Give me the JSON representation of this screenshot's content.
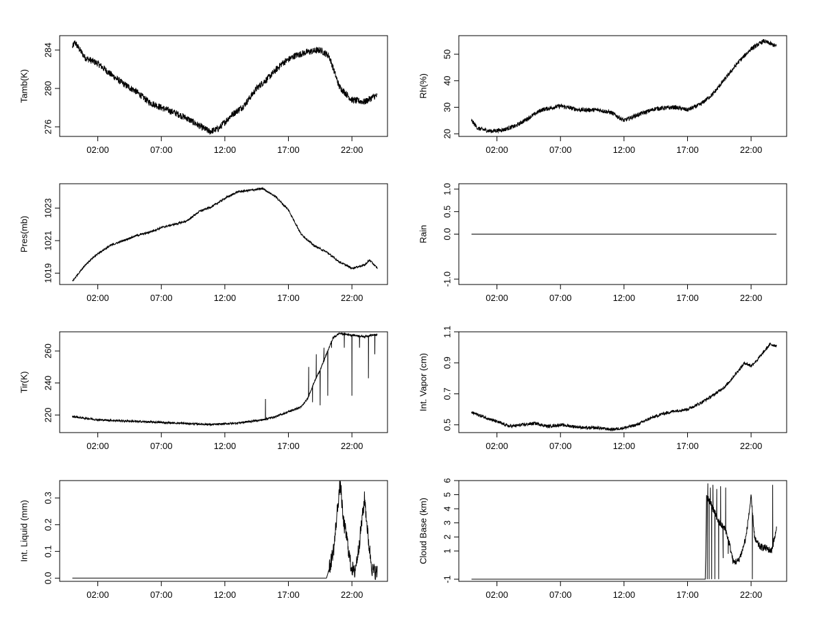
{
  "chart_data": [
    {
      "type": "line",
      "ylabel": "Tamb(K)",
      "xlim": [
        -1.0,
        24.8
      ],
      "ylim": [
        275,
        285.5
      ],
      "yticks": [
        276,
        280,
        284
      ],
      "x_ticks": [
        {
          "v": 2,
          "label": "02:00"
        },
        {
          "v": 7,
          "label": "07:00"
        },
        {
          "v": 12,
          "label": "12:00"
        },
        {
          "v": 17,
          "label": "17:00"
        },
        {
          "v": 22,
          "label": "22:00"
        }
      ],
      "x_range": [
        0,
        24
      ],
      "anchors": [
        [
          0,
          284.3
        ],
        [
          0.2,
          284.8
        ],
        [
          1.0,
          283.2
        ],
        [
          2.0,
          282.6
        ],
        [
          3.0,
          281.5
        ],
        [
          4.0,
          280.5
        ],
        [
          5.0,
          279.7
        ],
        [
          6.0,
          278.6
        ],
        [
          7.0,
          278.0
        ],
        [
          8.0,
          277.5
        ],
        [
          9.0,
          276.9
        ],
        [
          10.0,
          276.1
        ],
        [
          10.8,
          275.5
        ],
        [
          11.5,
          275.8
        ],
        [
          12.5,
          277.2
        ],
        [
          13.5,
          278.2
        ],
        [
          14.5,
          280.0
        ],
        [
          15.5,
          281.2
        ],
        [
          16.5,
          282.6
        ],
        [
          17.5,
          283.4
        ],
        [
          18.5,
          283.8
        ],
        [
          19.5,
          284.0
        ],
        [
          20.2,
          283.4
        ],
        [
          21.0,
          280.2
        ],
        [
          22.0,
          278.8
        ],
        [
          23.0,
          278.6
        ],
        [
          23.8,
          279.2
        ]
      ],
      "noise": 0.35
    },
    {
      "type": "line",
      "ylabel": "Rh(%)",
      "xlim": [
        -1.0,
        24.8
      ],
      "ylim": [
        19,
        57
      ],
      "yticks": [
        20,
        30,
        40,
        50
      ],
      "x_ticks": [
        {
          "v": 2,
          "label": "02:00"
        },
        {
          "v": 7,
          "label": "07:00"
        },
        {
          "v": 12,
          "label": "12:00"
        },
        {
          "v": 17,
          "label": "17:00"
        },
        {
          "v": 22,
          "label": "22:00"
        }
      ],
      "x_range": [
        0,
        24
      ],
      "anchors": [
        [
          0,
          25
        ],
        [
          0.5,
          22
        ],
        [
          1.5,
          21
        ],
        [
          2.5,
          21.5
        ],
        [
          3.5,
          23
        ],
        [
          4.5,
          26
        ],
        [
          5.5,
          29
        ],
        [
          7.0,
          30.5
        ],
        [
          8.5,
          29
        ],
        [
          10,
          29
        ],
        [
          11,
          28
        ],
        [
          12,
          25
        ],
        [
          13,
          27
        ],
        [
          14.5,
          29.5
        ],
        [
          16,
          30
        ],
        [
          17,
          29
        ],
        [
          18,
          31
        ],
        [
          19,
          35
        ],
        [
          20,
          41
        ],
        [
          21,
          47
        ],
        [
          22,
          52
        ],
        [
          23,
          55
        ],
        [
          24,
          53
        ]
      ],
      "noise": 0.8
    },
    {
      "type": "line",
      "ylabel": "Pres(mb)",
      "xlim": [
        -1.0,
        24.8
      ],
      "ylim": [
        1018.3,
        1024.5
      ],
      "yticks": [
        1019,
        1021,
        1023
      ],
      "x_ticks": [
        {
          "v": 2,
          "label": "02:00"
        },
        {
          "v": 7,
          "label": "07:00"
        },
        {
          "v": 12,
          "label": "12:00"
        },
        {
          "v": 17,
          "label": "17:00"
        },
        {
          "v": 22,
          "label": "22:00"
        }
      ],
      "x_range": [
        0,
        24
      ],
      "anchors": [
        [
          0,
          1018.5
        ],
        [
          1,
          1019.5
        ],
        [
          2,
          1020.2
        ],
        [
          3,
          1020.7
        ],
        [
          4,
          1021.0
        ],
        [
          5,
          1021.3
        ],
        [
          6,
          1021.5
        ],
        [
          7,
          1021.8
        ],
        [
          8,
          1022.0
        ],
        [
          9,
          1022.2
        ],
        [
          10,
          1022.8
        ],
        [
          11,
          1023.1
        ],
        [
          12,
          1023.6
        ],
        [
          13,
          1024.0
        ],
        [
          14,
          1024.1
        ],
        [
          15,
          1024.2
        ],
        [
          16,
          1023.7
        ],
        [
          17,
          1022.9
        ],
        [
          18,
          1021.4
        ],
        [
          19,
          1020.7
        ],
        [
          20,
          1020.3
        ],
        [
          21,
          1019.7
        ],
        [
          22,
          1019.3
        ],
        [
          23,
          1019.5
        ],
        [
          23.4,
          1019.8
        ],
        [
          24,
          1019.3
        ]
      ],
      "noise": 0.06
    },
    {
      "type": "line",
      "ylabel": "Rain",
      "xlim": [
        -1.0,
        24.8
      ],
      "ylim": [
        -1.12,
        1.12
      ],
      "yticks": [
        -1.0,
        0.0,
        0.5,
        1.0
      ],
      "ytick_labels": [
        "-1.0",
        "0.0",
        "0.5",
        "1.0"
      ],
      "x_ticks": [
        {
          "v": 2,
          "label": "02:00"
        },
        {
          "v": 7,
          "label": "07:00"
        },
        {
          "v": 12,
          "label": "12:00"
        },
        {
          "v": 17,
          "label": "17:00"
        },
        {
          "v": 22,
          "label": "22:00"
        }
      ],
      "x_range": [
        0,
        24
      ],
      "anchors": [
        [
          0,
          0
        ],
        [
          24,
          0
        ]
      ],
      "noise": 0
    },
    {
      "type": "line",
      "ylabel": "Tir(K)",
      "xlim": [
        -1.0,
        24.8
      ],
      "ylim": [
        209,
        272
      ],
      "yticks": [
        220,
        240,
        260
      ],
      "x_ticks": [
        {
          "v": 2,
          "label": "02:00"
        },
        {
          "v": 7,
          "label": "07:00"
        },
        {
          "v": 12,
          "label": "12:00"
        },
        {
          "v": 17,
          "label": "17:00"
        },
        {
          "v": 22,
          "label": "22:00"
        }
      ],
      "x_range": [
        0,
        24
      ],
      "anchors": [
        [
          0,
          219
        ],
        [
          2,
          217
        ],
        [
          5,
          216
        ],
        [
          8,
          215
        ],
        [
          11,
          214
        ],
        [
          13,
          215
        ],
        [
          15,
          217
        ],
        [
          16,
          219
        ],
        [
          17,
          222
        ],
        [
          18,
          225
        ],
        [
          18.5,
          230
        ],
        [
          19,
          240
        ],
        [
          19.6,
          250
        ],
        [
          20,
          258
        ],
        [
          20.5,
          268
        ],
        [
          21,
          271
        ],
        [
          22,
          270
        ],
        [
          23,
          269
        ],
        [
          23.5,
          270
        ],
        [
          24,
          270
        ]
      ],
      "spikes": [
        [
          15.2,
          230
        ],
        [
          18.6,
          250
        ],
        [
          18.9,
          228
        ],
        [
          19.2,
          258
        ],
        [
          19.5,
          226
        ],
        [
          19.8,
          262
        ],
        [
          20.1,
          232
        ],
        [
          20.4,
          262
        ],
        [
          21.4,
          262
        ],
        [
          22.0,
          232
        ],
        [
          22.6,
          262
        ],
        [
          23.3,
          243
        ],
        [
          23.8,
          258
        ]
      ],
      "noise": 0.6
    },
    {
      "type": "line",
      "ylabel": "Int. Vapor (cm)",
      "xlim": [
        -1.0,
        24.8
      ],
      "ylim": [
        0.45,
        1.1
      ],
      "yticks": [
        0.5,
        0.7,
        0.9,
        1.1
      ],
      "x_ticks": [
        {
          "v": 2,
          "label": "02:00"
        },
        {
          "v": 7,
          "label": "07:00"
        },
        {
          "v": 12,
          "label": "12:00"
        },
        {
          "v": 17,
          "label": "17:00"
        },
        {
          "v": 22,
          "label": "22:00"
        }
      ],
      "x_range": [
        0,
        24
      ],
      "anchors": [
        [
          0,
          0.58
        ],
        [
          1,
          0.55
        ],
        [
          2,
          0.52
        ],
        [
          3,
          0.49
        ],
        [
          4,
          0.5
        ],
        [
          5,
          0.51
        ],
        [
          6,
          0.49
        ],
        [
          7,
          0.5
        ],
        [
          8,
          0.49
        ],
        [
          9,
          0.48
        ],
        [
          10,
          0.48
        ],
        [
          11,
          0.47
        ],
        [
          12,
          0.48
        ],
        [
          13,
          0.5
        ],
        [
          14,
          0.54
        ],
        [
          15,
          0.57
        ],
        [
          16,
          0.59
        ],
        [
          17,
          0.6
        ],
        [
          18,
          0.64
        ],
        [
          19,
          0.69
        ],
        [
          20,
          0.75
        ],
        [
          21,
          0.85
        ],
        [
          21.5,
          0.9
        ],
        [
          22,
          0.88
        ],
        [
          22.5,
          0.92
        ],
        [
          23,
          0.97
        ],
        [
          23.5,
          1.02
        ],
        [
          24,
          1.01
        ]
      ],
      "noise": 0.01
    },
    {
      "type": "line",
      "ylabel": "Int. Liquid (mm)",
      "xlim": [
        -1.0,
        24.8
      ],
      "ylim": [
        -0.012,
        0.365
      ],
      "yticks": [
        0.0,
        0.1,
        0.2,
        0.3
      ],
      "ytick_labels": [
        "0.0",
        "0.1",
        "0.2",
        "0.3"
      ],
      "x_ticks": [
        {
          "v": 2,
          "label": "02:00"
        },
        {
          "v": 7,
          "label": "07:00"
        },
        {
          "v": 12,
          "label": "12:00"
        },
        {
          "v": 17,
          "label": "17:00"
        },
        {
          "v": 22,
          "label": "22:00"
        }
      ],
      "x_range": [
        0,
        24
      ],
      "anchors": [
        [
          0,
          0
        ],
        [
          20,
          0
        ],
        [
          20.3,
          0.05
        ],
        [
          20.6,
          0.12
        ],
        [
          20.9,
          0.28
        ],
        [
          21.1,
          0.36
        ],
        [
          21.3,
          0.22
        ],
        [
          21.6,
          0.15
        ],
        [
          21.9,
          0.05
        ],
        [
          22.2,
          0.02
        ],
        [
          22.5,
          0.1
        ],
        [
          22.8,
          0.22
        ],
        [
          23.0,
          0.3
        ],
        [
          23.3,
          0.14
        ],
        [
          23.6,
          0.03
        ],
        [
          24,
          0.02
        ]
      ],
      "noise": 0.03,
      "noise_after": 20.2
    },
    {
      "type": "line",
      "ylabel": "Cloud Base (km)",
      "xlim": [
        -1.0,
        24.8
      ],
      "ylim": [
        -1.15,
        6.0
      ],
      "yticks": [
        -1,
        1,
        2,
        3,
        4,
        5,
        6
      ],
      "x_ticks": [
        {
          "v": 2,
          "label": "02:00"
        },
        {
          "v": 7,
          "label": "07:00"
        },
        {
          "v": 12,
          "label": "12:00"
        },
        {
          "v": 17,
          "label": "17:00"
        },
        {
          "v": 22,
          "label": "22:00"
        }
      ],
      "x_range": [
        0,
        24
      ],
      "anchors": [
        [
          0,
          -1
        ],
        [
          18.4,
          -1
        ],
        [
          18.5,
          5
        ],
        [
          19,
          4
        ],
        [
          19.5,
          3
        ],
        [
          20,
          2.5
        ],
        [
          20.3,
          1.5
        ],
        [
          20.6,
          0.2
        ],
        [
          21,
          0.3
        ],
        [
          21.3,
          1.0
        ],
        [
          21.6,
          2.0
        ],
        [
          22,
          4.8
        ],
        [
          22.3,
          1.8
        ],
        [
          22.7,
          1.3
        ],
        [
          23.2,
          1.2
        ],
        [
          23.6,
          1.0
        ],
        [
          24,
          2.5
        ]
      ],
      "spikes": [
        [
          18.55,
          -1
        ],
        [
          18.6,
          5.8
        ],
        [
          18.7,
          -1
        ],
        [
          18.8,
          5.5
        ],
        [
          18.9,
          -1
        ],
        [
          19.0,
          5.7
        ],
        [
          19.15,
          -1
        ],
        [
          19.3,
          5.4
        ],
        [
          19.45,
          -1
        ],
        [
          19.6,
          5.6
        ],
        [
          19.8,
          0.5
        ],
        [
          20.0,
          5.5
        ],
        [
          20.2,
          0.8
        ],
        [
          22.1,
          -1
        ],
        [
          23.7,
          5.7
        ]
      ],
      "noise": 0.25,
      "noise_after": 18.4
    }
  ]
}
